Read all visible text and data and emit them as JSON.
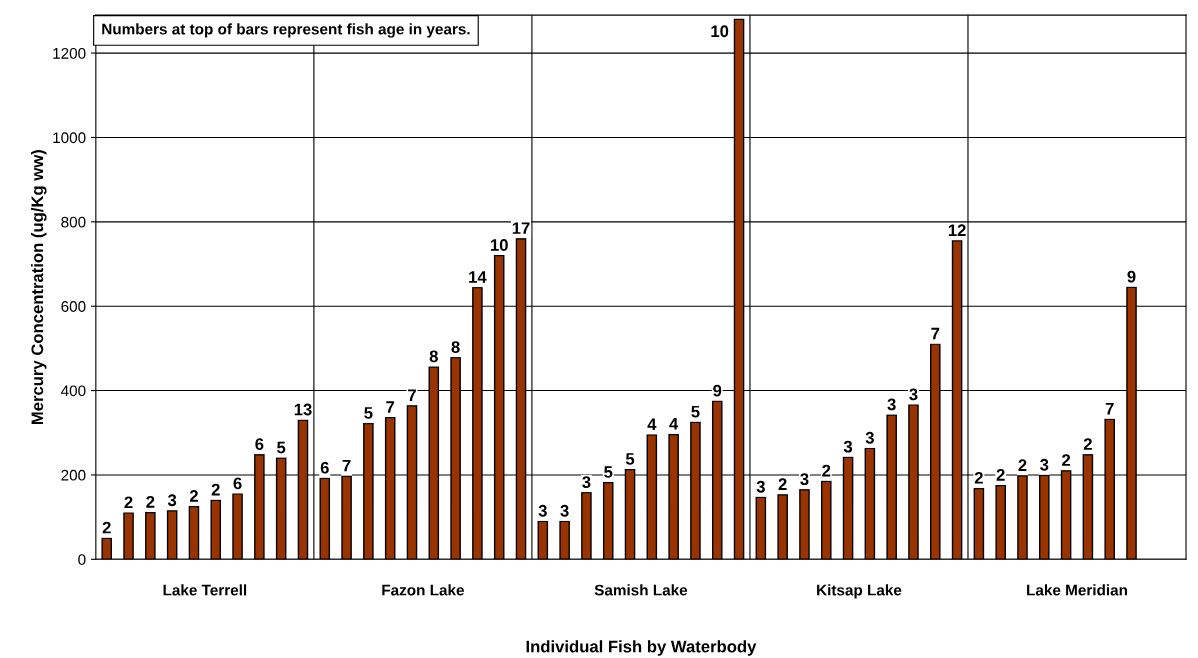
{
  "chart_data": {
    "type": "bar",
    "xlabel": "Individual Fish by Waterbody",
    "ylabel": "Mercury Concentration (ug/Kg ww)",
    "categories": [
      "Lake Terrell",
      "Fazon Lake",
      "Samish Lake",
      "Kitsap Lake",
      "Lake Meridian"
    ],
    "series": [
      {
        "color": "#993300",
        "values": [
          50,
          192,
          90,
          147,
          168
        ]
      },
      {
        "color": "#993300",
        "values": [
          110,
          197,
          90,
          153,
          175
        ]
      },
      {
        "color": "#993300",
        "values": [
          111,
          322,
          158,
          165,
          198
        ]
      },
      {
        "color": "#993300",
        "values": [
          115,
          336,
          182,
          185,
          199
        ]
      },
      {
        "color": "#993300",
        "values": [
          125,
          364,
          213,
          242,
          210
        ]
      },
      {
        "color": "#993300",
        "values": [
          140,
          456,
          295,
          263,
          248
        ]
      },
      {
        "color": "#993300",
        "values": [
          155,
          478,
          296,
          342,
          332
        ]
      },
      {
        "color": "#993300",
        "values": [
          248,
          644,
          325,
          366,
          645
        ]
      },
      {
        "color": "#993300",
        "values": [
          240,
          720,
          375,
          510,
          null
        ]
      },
      {
        "color": "#993300",
        "values": [
          330,
          760,
          1280,
          755,
          null
        ]
      }
    ],
    "annotations": [
      "Numbers at top of bars represent fish age in years.",
      "2",
      "2",
      "2",
      "3",
      "2",
      "2",
      "6",
      "6",
      "5",
      "13",
      "6",
      "7",
      "5",
      "7",
      "7",
      "8",
      "8",
      "14",
      "10",
      "17",
      "3",
      "3",
      "3",
      "5",
      "5",
      "4",
      "4",
      "5",
      "9",
      "10",
      "3",
      "2",
      "3",
      "2",
      "3",
      "3",
      "3",
      "3",
      "7",
      "12",
      "2",
      "2",
      "2",
      "3",
      "2",
      "2",
      "7",
      "9"
    ],
    "ylim": [
      0,
      1290
    ],
    "yticks": [
      0,
      200,
      400,
      600,
      800,
      1000,
      1200
    ],
    "grid": true,
    "legend": false
  }
}
